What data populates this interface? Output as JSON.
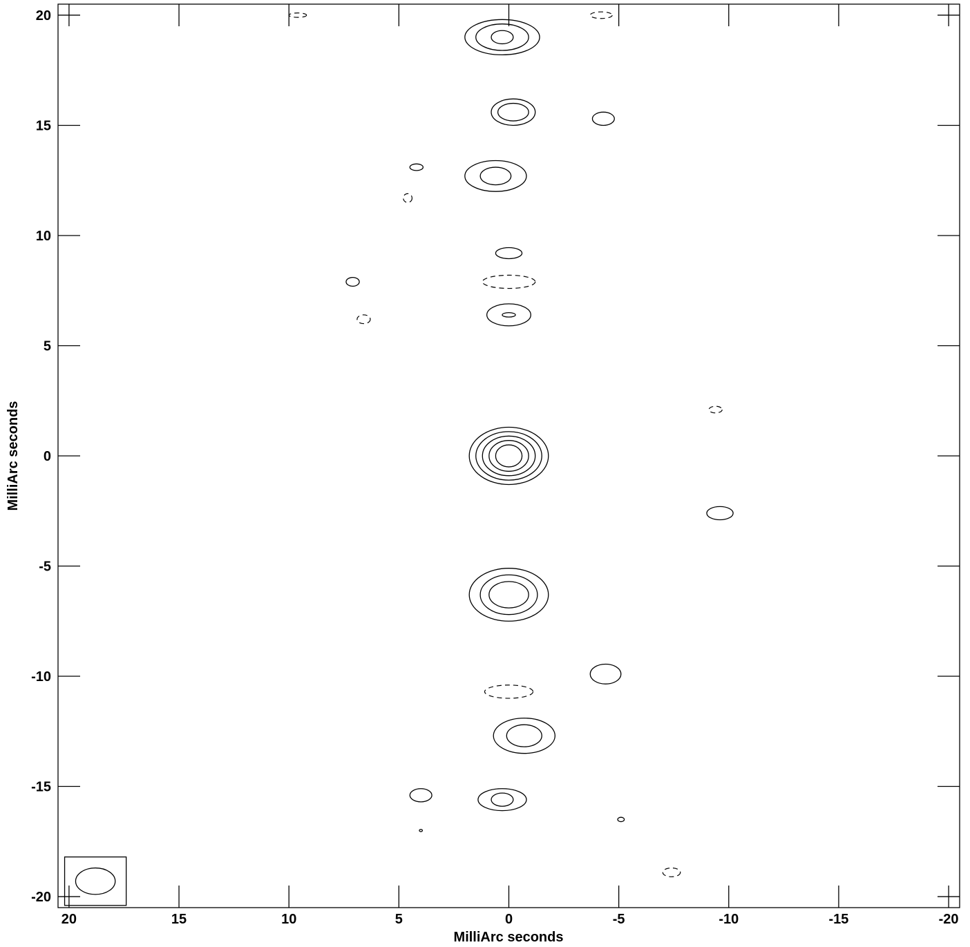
{
  "chart_data": {
    "type": "contour",
    "title": "",
    "xlabel": "MilliArc seconds",
    "ylabel": "MilliArc seconds",
    "xlim": [
      20.5,
      -20.5
    ],
    "ylim": [
      -20.5,
      20.5
    ],
    "xticks": [
      20,
      15,
      10,
      5,
      0,
      -5,
      -10,
      -15,
      -20
    ],
    "yticks": [
      20,
      15,
      10,
      5,
      0,
      -5,
      -10,
      -15,
      -20
    ],
    "xtick_labels": [
      "20",
      "15",
      "10",
      "5",
      "0",
      "-5",
      "-10",
      "-15",
      "-20"
    ],
    "ytick_labels": [
      "20",
      "15",
      "10",
      "5",
      "0",
      "-5",
      "-10",
      "-15",
      "-20"
    ],
    "grid": false,
    "beam": {
      "x": 18.8,
      "y": -19.3,
      "rx": 0.9,
      "ry": 0.6
    },
    "components": [
      {
        "x": 0.3,
        "y": 19.0,
        "rx": [
          0.5,
          1.2,
          1.7
        ],
        "ry": [
          0.3,
          0.6,
          0.8
        ]
      },
      {
        "x": -0.2,
        "y": 15.6,
        "rx": [
          0.7,
          1.0
        ],
        "ry": [
          0.4,
          0.6
        ]
      },
      {
        "x": -4.3,
        "y": 15.3,
        "rx": [
          0.5
        ],
        "ry": [
          0.3
        ]
      },
      {
        "x": 0.6,
        "y": 12.7,
        "rx": [
          0.7,
          1.4
        ],
        "ry": [
          0.4,
          0.7
        ]
      },
      {
        "x": 4.2,
        "y": 13.1,
        "rx": [
          0.3
        ],
        "ry": [
          0.15
        ]
      },
      {
        "x": 0.0,
        "y": 9.2,
        "rx": [
          0.6
        ],
        "ry": [
          0.25
        ]
      },
      {
        "x": 7.1,
        "y": 7.9,
        "rx": [
          0.3
        ],
        "ry": [
          0.2
        ]
      },
      {
        "x": 0.0,
        "y": 6.4,
        "rx": [
          0.3,
          1.0
        ],
        "ry": [
          0.1,
          0.5
        ]
      },
      {
        "x": 0.0,
        "y": 0.0,
        "rx": [
          0.6,
          0.9,
          1.2,
          1.5,
          1.8
        ],
        "ry": [
          0.5,
          0.7,
          0.9,
          1.1,
          1.3
        ]
      },
      {
        "x": -9.6,
        "y": -2.6,
        "rx": [
          0.6
        ],
        "ry": [
          0.3
        ]
      },
      {
        "x": 0.0,
        "y": -6.3,
        "rx": [
          0.9,
          1.3,
          1.8
        ],
        "ry": [
          0.6,
          0.9,
          1.2
        ]
      },
      {
        "x": -4.4,
        "y": -9.9,
        "rx": [
          0.7
        ],
        "ry": [
          0.45
        ]
      },
      {
        "x": -0.7,
        "y": -12.7,
        "rx": [
          0.8,
          1.4
        ],
        "ry": [
          0.5,
          0.8
        ]
      },
      {
        "x": 4.0,
        "y": -15.4,
        "rx": [
          0.5
        ],
        "ry": [
          0.3
        ]
      },
      {
        "x": 0.3,
        "y": -15.6,
        "rx": [
          0.5,
          1.1
        ],
        "ry": [
          0.3,
          0.5
        ]
      },
      {
        "x": -5.1,
        "y": -16.5,
        "rx": [
          0.15
        ],
        "ry": [
          0.1
        ]
      },
      {
        "x": 4.0,
        "y": -17.0,
        "rx": [
          0.07
        ],
        "ry": [
          0.05
        ]
      }
    ],
    "negative_contours": [
      {
        "x": 0.0,
        "y": 7.9,
        "rx": 1.2,
        "ry": 0.3
      },
      {
        "x": 0.0,
        "y": -10.7,
        "rx": 1.1,
        "ry": 0.3
      },
      {
        "x": 9.6,
        "y": 20.0,
        "rx": 0.4,
        "ry": 0.1
      },
      {
        "x": -4.2,
        "y": 20.0,
        "rx": 0.5,
        "ry": 0.15
      },
      {
        "x": -9.4,
        "y": 2.1,
        "rx": 0.3,
        "ry": 0.15
      },
      {
        "x": 6.6,
        "y": 6.2,
        "rx": 0.3,
        "ry": 0.2
      },
      {
        "x": 4.6,
        "y": 11.7,
        "rx": 0.2,
        "ry": 0.2
      },
      {
        "x": -7.4,
        "y": -18.9,
        "rx": 0.4,
        "ry": 0.2
      }
    ]
  }
}
